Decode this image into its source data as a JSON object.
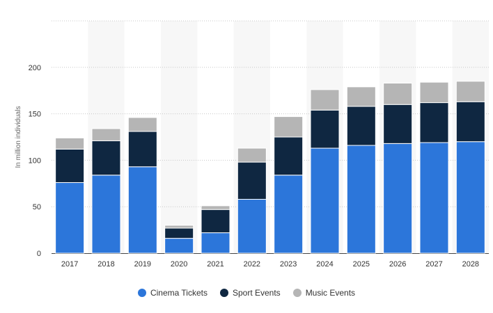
{
  "chart_data": {
    "type": "bar",
    "stacked": true,
    "categories": [
      "2017",
      "2018",
      "2019",
      "2020",
      "2021",
      "2022",
      "2023",
      "2024",
      "2025",
      "2026",
      "2027",
      "2028"
    ],
    "series": [
      {
        "name": "Cinema Tickets",
        "color": "#2c76da",
        "values": [
          76,
          84,
          93,
          16,
          22,
          58,
          84,
          113,
          116,
          118,
          119,
          120
        ]
      },
      {
        "name": "Sport Events",
        "color": "#0f2741",
        "values": [
          36,
          37,
          38,
          11,
          25,
          40,
          41,
          41,
          42,
          42,
          43,
          43
        ]
      },
      {
        "name": "Music Events",
        "color": "#b5b5b5",
        "values": [
          12,
          13,
          15,
          3,
          4,
          15,
          22,
          22,
          21,
          23,
          22,
          22
        ]
      }
    ],
    "ylabel": "In million individuals",
    "xlabel": "",
    "ylim": [
      0,
      250
    ],
    "yticks": [
      0,
      50,
      100,
      150,
      200
    ],
    "grid": true,
    "legend_position": "bottom"
  }
}
